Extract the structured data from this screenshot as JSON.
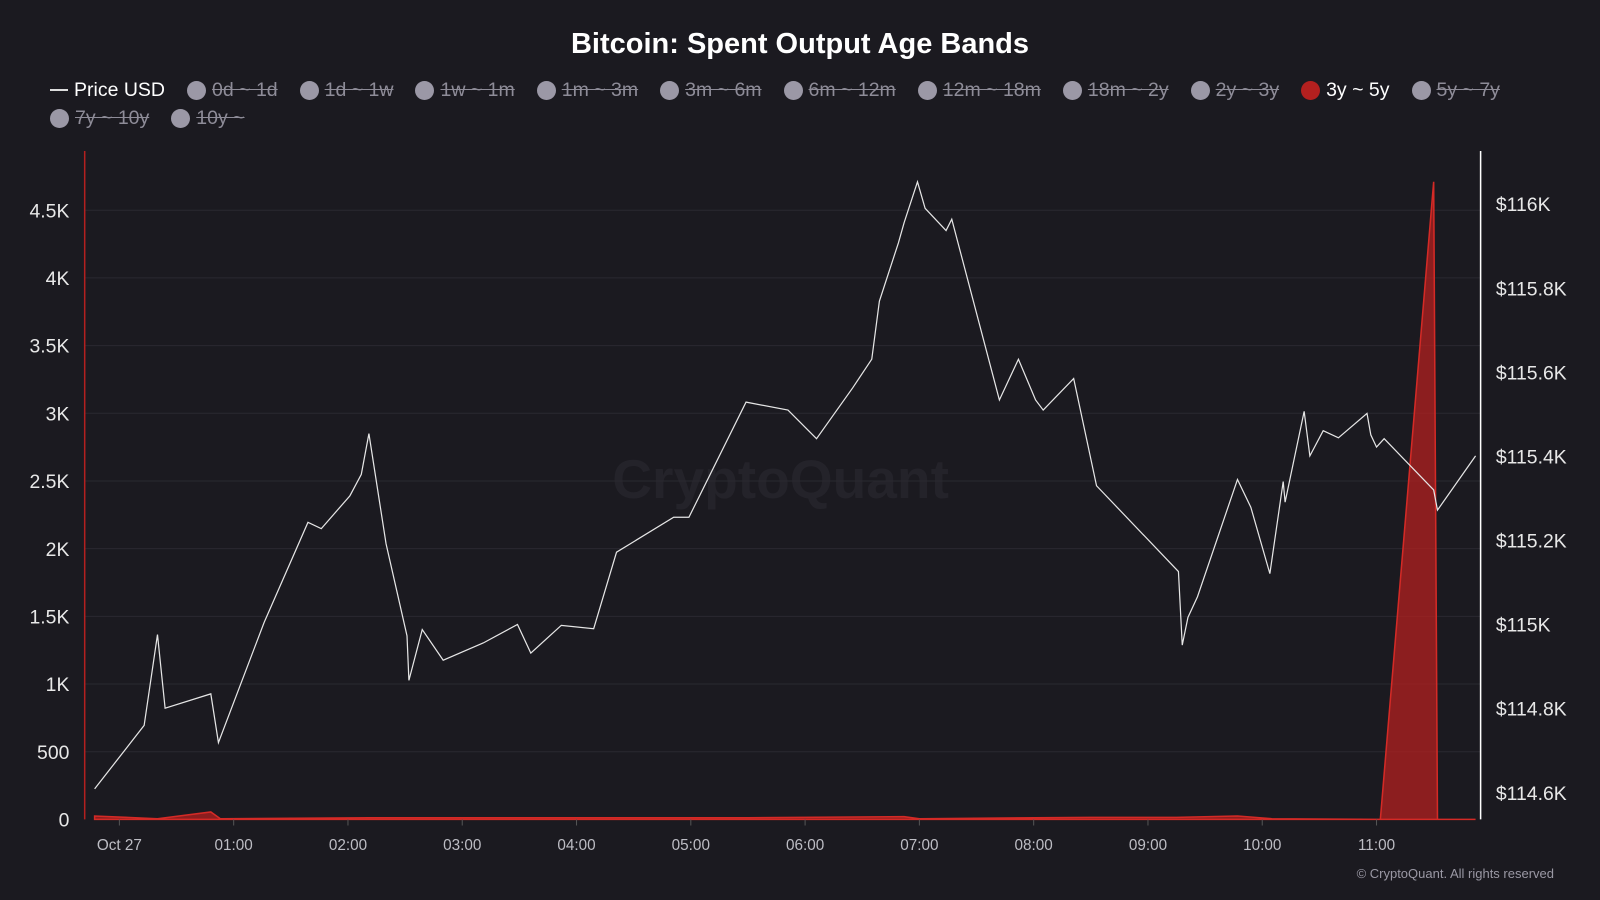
{
  "chart_data": {
    "type": "area",
    "title": "Bitcoin: Spent Output Age Bands",
    "legend": [
      {
        "label": "Price USD",
        "active": true,
        "marker": "line"
      },
      {
        "label": "0d ~ 1d",
        "active": false
      },
      {
        "label": "1d ~ 1w",
        "active": false
      },
      {
        "label": "1w ~ 1m",
        "active": false
      },
      {
        "label": "1m ~ 3m",
        "active": false
      },
      {
        "label": "3m ~ 6m",
        "active": false
      },
      {
        "label": "6m ~ 12m",
        "active": false
      },
      {
        "label": "12m ~ 18m",
        "active": false
      },
      {
        "label": "18m ~ 2y",
        "active": false
      },
      {
        "label": "2y ~ 3y",
        "active": false
      },
      {
        "label": "3y ~ 5y",
        "active": true,
        "color": "#b3201f"
      },
      {
        "label": "5y ~ 7y",
        "active": false
      },
      {
        "label": "7y ~ 10y",
        "active": false
      },
      {
        "label": "10y ~",
        "active": false
      }
    ],
    "legend_placement": "top",
    "x_ticks": [
      "Oct 27",
      "01:00",
      "02:00",
      "03:00",
      "04:00",
      "05:00",
      "06:00",
      "07:00",
      "08:00",
      "09:00",
      "10:00",
      "11:00"
    ],
    "y_left": {
      "ticks": [
        "0",
        "500",
        "1K",
        "1.5K",
        "2K",
        "2.5K",
        "3K",
        "3.5K",
        "4K",
        "4.5K"
      ],
      "range": [
        0,
        4940
      ]
    },
    "y_right": {
      "ticks": [
        "$114.6K",
        "$114.8K",
        "$115K",
        "$115.2K",
        "$115.4K",
        "$115.6K",
        "$115.8K",
        "$116K"
      ],
      "range": [
        114540,
        116130
      ]
    },
    "grid": true,
    "series": [
      {
        "name": "3y ~ 5y",
        "type": "area",
        "axis": "left",
        "color": "#b3201f",
        "points": [
          [
            "10-26 23:47",
            25
          ],
          [
            "10-27 00:20",
            5
          ],
          [
            "10-27 00:48",
            55
          ],
          [
            "10-27 00:53",
            5
          ],
          [
            "10-27 02:11",
            12
          ],
          [
            "10-27 05:30",
            12
          ],
          [
            "10-27 06:52",
            20
          ],
          [
            "10-27 07:00",
            5
          ],
          [
            "10-27 08:30",
            15
          ],
          [
            "10-27 09:15",
            15
          ],
          [
            "10-27 09:47",
            25
          ],
          [
            "10-27 10:05",
            5
          ],
          [
            "10-27 11:02",
            0
          ],
          [
            "10-27 11:30",
            4710
          ],
          [
            "10-27 11:32",
            0
          ],
          [
            "10-27 11:52",
            0
          ]
        ]
      },
      {
        "name": "Price USD",
        "type": "line",
        "axis": "right",
        "color": "#e6e6e6",
        "points": [
          [
            "10-26 23:47",
            114609
          ],
          [
            "10-27 00:13",
            114760
          ],
          [
            "10-27 00:20",
            114976
          ],
          [
            "10-27 00:24",
            114801
          ],
          [
            "10-27 00:48",
            114835
          ],
          [
            "10-27 00:52",
            114719
          ],
          [
            "10-27 01:16",
            115005
          ],
          [
            "10-27 01:39",
            115243
          ],
          [
            "10-27 01:46",
            115228
          ],
          [
            "10-27 02:01",
            115306
          ],
          [
            "10-27 02:07",
            115357
          ],
          [
            "10-27 02:11",
            115454
          ],
          [
            "10-27 02:20",
            115192
          ],
          [
            "10-27 02:31",
            114973
          ],
          [
            "10-27 02:32",
            114867
          ],
          [
            "10-27 02:39",
            114988
          ],
          [
            "10-27 02:50",
            114915
          ],
          [
            "10-27 03:11",
            114956
          ],
          [
            "10-27 03:29",
            115000
          ],
          [
            "10-27 03:36",
            114932
          ],
          [
            "10-27 03:52",
            114998
          ],
          [
            "10-27 04:09",
            114990
          ],
          [
            "10-27 04:21",
            115172
          ],
          [
            "10-27 04:51",
            115255
          ],
          [
            "10-27 04:59",
            115255
          ],
          [
            "10-27 05:29",
            115529
          ],
          [
            "10-27 05:51",
            115510
          ],
          [
            "10-27 06:06",
            115442
          ],
          [
            "10-27 06:25",
            115563
          ],
          [
            "10-27 06:35",
            115631
          ],
          [
            "10-27 06:39",
            115769
          ],
          [
            "10-27 06:49",
            115908
          ],
          [
            "10-27 06:52",
            115956
          ],
          [
            "10-27 06:59",
            116053
          ],
          [
            "10-27 07:03",
            115990
          ],
          [
            "10-27 07:14",
            115937
          ],
          [
            "10-27 07:17",
            115964
          ],
          [
            "10-27 07:42",
            115534
          ],
          [
            "10-27 07:52",
            115631
          ],
          [
            "10-27 08:01",
            115534
          ],
          [
            "10-27 08:05",
            115510
          ],
          [
            "10-27 08:21",
            115585
          ],
          [
            "10-27 08:33",
            115330
          ],
          [
            "10-27 09:16",
            115126
          ],
          [
            "10-27 09:18",
            114951
          ],
          [
            "10-27 09:21",
            115017
          ],
          [
            "10-27 09:26",
            115066
          ],
          [
            "10-27 09:47",
            115345
          ],
          [
            "10-27 09:54",
            115279
          ],
          [
            "10-27 10:04",
            115121
          ],
          [
            "10-27 10:11",
            115340
          ],
          [
            "10-27 10:12",
            115291
          ],
          [
            "10-27 10:22",
            115507
          ],
          [
            "10-27 10:25",
            115401
          ],
          [
            "10-27 10:32",
            115461
          ],
          [
            "10-27 10:40",
            115444
          ],
          [
            "10-27 10:55",
            115502
          ],
          [
            "10-27 10:57",
            115451
          ],
          [
            "10-27 11:00",
            115422
          ],
          [
            "10-27 11:04",
            115442
          ],
          [
            "10-27 11:30",
            115320
          ],
          [
            "10-27 11:32",
            115272
          ],
          [
            "10-27 11:52",
            115401
          ]
        ]
      }
    ]
  },
  "watermark": "CryptoQuant",
  "footer": "© CryptoQuant. All rights reserved",
  "colors": {
    "background": "#1b1a20",
    "accent": "#b3201f",
    "price_line": "#e6e6e6",
    "inactive": "#9b98a6"
  }
}
